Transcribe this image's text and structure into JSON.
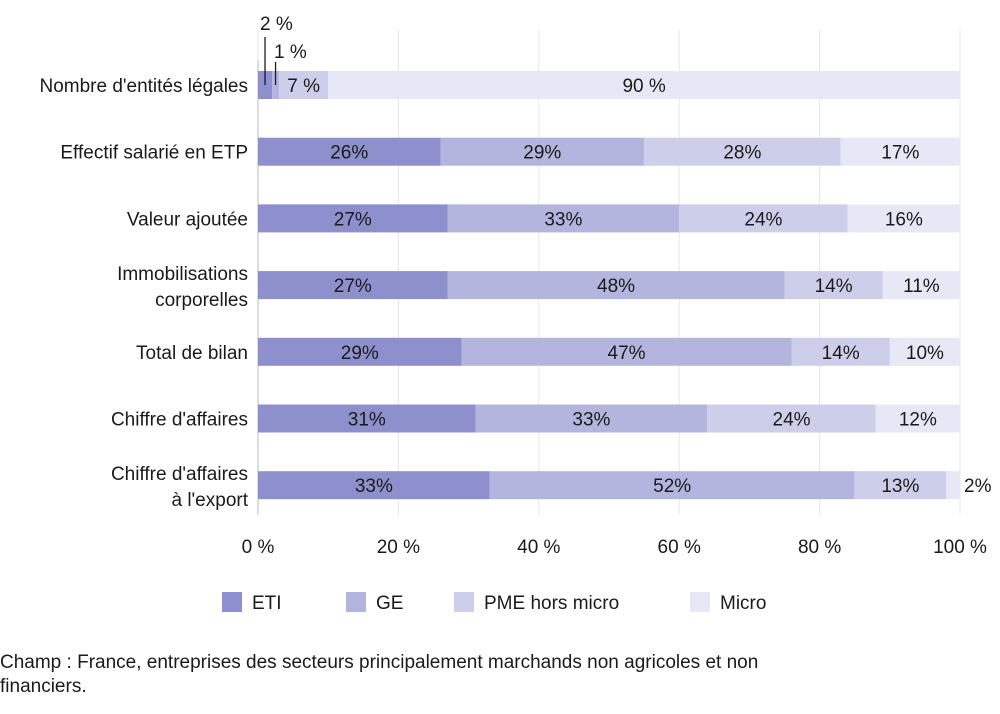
{
  "chart_data": {
    "type": "bar",
    "orientation": "horizontal",
    "stacked": true,
    "percent": true,
    "categories": [
      [
        "Nombre d'entités légales"
      ],
      [
        "Effectif salarié en ETP"
      ],
      [
        "Valeur ajoutée"
      ],
      [
        "Immobilisations",
        "corporelles"
      ],
      [
        "Total de bilan"
      ],
      [
        "Chiffre d'affaires"
      ],
      [
        "Chiffre d'affaires",
        "à l'export"
      ]
    ],
    "series": [
      {
        "name": "ETI",
        "color": "#8d90cc",
        "values": [
          2,
          26,
          27,
          27,
          29,
          31,
          33
        ]
      },
      {
        "name": "GE",
        "color": "#b3b5de",
        "values": [
          1,
          29,
          33,
          48,
          47,
          33,
          52
        ]
      },
      {
        "name": "PME hors micro",
        "color": "#cdcfea",
        "values": [
          7,
          28,
          24,
          14,
          14,
          24,
          13
        ]
      },
      {
        "name": "Micro",
        "color": "#e7e8f5",
        "values": [
          90,
          17,
          16,
          11,
          10,
          12,
          2
        ]
      }
    ],
    "data_labels": [
      [
        "2 %",
        "1 %",
        "7 %",
        "90 %"
      ],
      [
        "26%",
        "29%",
        "28%",
        "17%"
      ],
      [
        "27%",
        "33%",
        "24%",
        "16%"
      ],
      [
        "27%",
        "48%",
        "14%",
        "11%"
      ],
      [
        "29%",
        "47%",
        "14%",
        "10%"
      ],
      [
        "31%",
        "33%",
        "24%",
        "12%"
      ],
      [
        "33%",
        "52%",
        "13%",
        "2%"
      ]
    ],
    "xlim": [
      0,
      100
    ],
    "xticks": [
      0,
      20,
      40,
      60,
      80,
      100
    ],
    "xtick_labels": [
      "0 %",
      "20 %",
      "40 %",
      "60 %",
      "80 %",
      "100 %"
    ],
    "grid": true,
    "legend_position": "bottom"
  },
  "footnote": "Champ : France, entreprises des secteurs principalement marchands non agricoles et non financiers."
}
